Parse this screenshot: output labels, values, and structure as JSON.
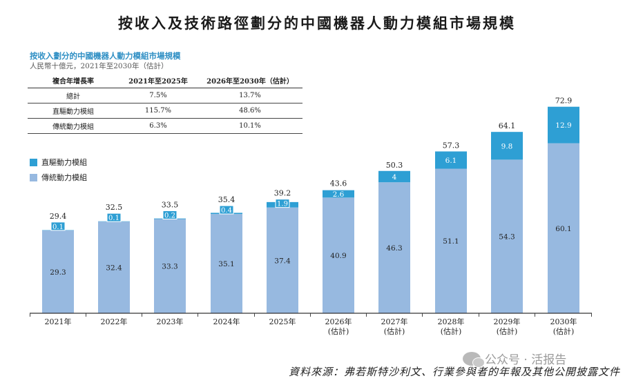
{
  "main_title": "按收入及技術路徑劃分的中國機器人動力模組市場規模",
  "subtitle": "按收入劃分的中國機器人動力模組市場規模",
  "unit_line": "人民幣十億元，2021年至2030年（估計）",
  "table": {
    "headers": [
      "複合年增長率",
      "2021年至2025年",
      "2026年至2030年（估計）"
    ],
    "rows": [
      {
        "label": "總計",
        "v1": "7.5%",
        "v2": "13.7%"
      },
      {
        "label": "直驅動力模組",
        "v1": "115.7%",
        "v2": "48.6%"
      },
      {
        "label": "傳統動力模組",
        "v1": "6.3%",
        "v2": "10.1%"
      }
    ]
  },
  "legend": [
    {
      "label": "直驅動力模組",
      "color": "#2e9fd4"
    },
    {
      "label": "傳統動力模組",
      "color": "#97b9e0"
    }
  ],
  "source": "資料來源：弗若斯特沙利文、行業參與者的年報及其他公開披露文件",
  "watermark": "公众号 · 活报告",
  "chart_data": {
    "type": "bar",
    "stacked": true,
    "categories": [
      "2021年",
      "2022年",
      "2023年",
      "2024年",
      "2025年",
      "2026年",
      "2027年",
      "2028年",
      "2029年",
      "2030年"
    ],
    "category_sublabels": [
      "",
      "",
      "",
      "",
      "",
      "(估計)",
      "(估計)",
      "(估計)",
      "(估計)",
      "(估計)"
    ],
    "series": [
      {
        "name": "傳統動力模組",
        "color": "#97b9e0",
        "values": [
          29.3,
          32.4,
          33.3,
          35.1,
          37.4,
          40.9,
          46.3,
          51.1,
          54.3,
          60.1
        ]
      },
      {
        "name": "直驅動力模組",
        "color": "#2e9fd4",
        "values": [
          0.1,
          0.1,
          0.2,
          0.4,
          1.9,
          2.6,
          4.0,
          6.1,
          9.8,
          12.9
        ]
      }
    ],
    "totals": [
      29.4,
      32.5,
      33.5,
      35.4,
      39.2,
      43.6,
      50.3,
      57.3,
      64.1,
      72.9
    ],
    "ylim": [
      0,
      80
    ]
  }
}
